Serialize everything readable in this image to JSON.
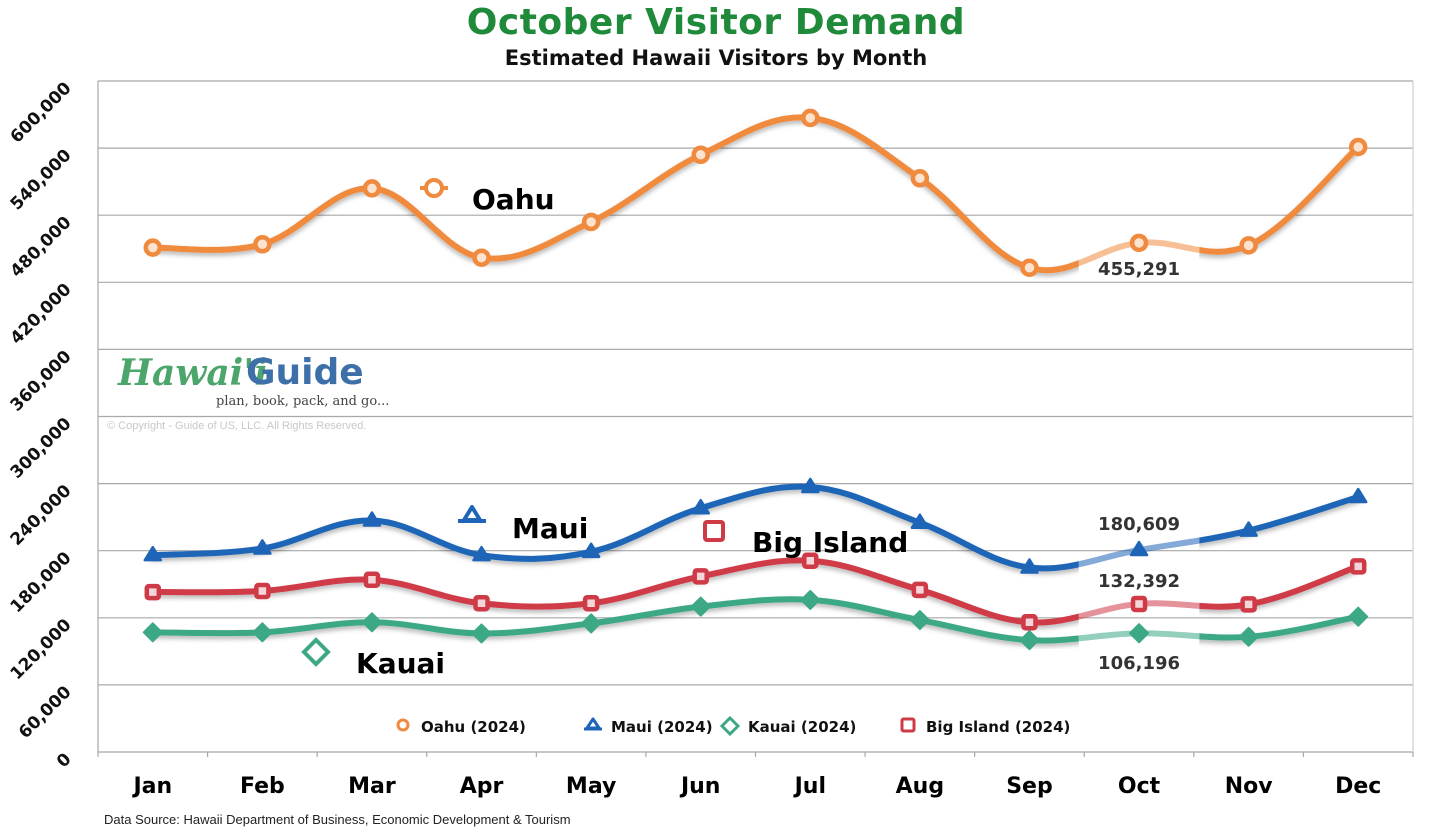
{
  "header": {
    "title": "October Visitor Demand",
    "subtitle": "Estimated Hawaii Visitors by Month"
  },
  "watermark": {
    "logo_part1": "Hawai'i",
    "logo_part2": "Guide",
    "tagline": "plan, book, pack, and go...",
    "copyright": "© Copyright - Guide of US, LLC. All Rights Reserved."
  },
  "footer": {
    "source": "Data Source: Hawaii Department of Business, Economic Development & Tourism"
  },
  "colors": {
    "title": "#1E8A3A",
    "oahu": "#F08A3E",
    "maui": "#1F65B7",
    "kauai": "#3DA886",
    "big_island": "#CF3A47",
    "grid": "#A8A8A8"
  },
  "chart_data": {
    "type": "line",
    "title": "October Visitor Demand",
    "subtitle": "Estimated Hawaii Visitors by Month",
    "xlabel": "",
    "ylabel": "",
    "ylim": [
      0,
      600000
    ],
    "yticks": [
      0,
      60000,
      120000,
      180000,
      240000,
      300000,
      360000,
      420000,
      480000,
      540000,
      600000
    ],
    "ytick_labels": [
      "0",
      "60,000",
      "120,000",
      "180,000",
      "240,000",
      "300,000",
      "360,000",
      "420,000",
      "480,000",
      "540,000",
      "600,000"
    ],
    "grid": true,
    "legend_position": "bottom-inside",
    "highlight_category": "Oct",
    "categories": [
      "Jan",
      "Feb",
      "Mar",
      "Apr",
      "May",
      "Jun",
      "Jul",
      "Aug",
      "Sep",
      "Oct",
      "Nov",
      "Dec"
    ],
    "series": [
      {
        "name": "Oahu (2024)",
        "short_name": "Oahu",
        "marker": "circle",
        "color": "#F08A3E",
        "values": [
          451000,
          454000,
          504000,
          442000,
          474000,
          534000,
          567000,
          513000,
          433000,
          455291,
          453000,
          541000
        ],
        "annotation": "455,291"
      },
      {
        "name": "Maui (2024)",
        "short_name": "Maui",
        "marker": "triangle",
        "color": "#1F65B7",
        "values": [
          176000,
          182000,
          207000,
          176000,
          179000,
          218000,
          237000,
          205000,
          165000,
          180609,
          198000,
          228000
        ],
        "annotation": "180,609"
      },
      {
        "name": "Kauai (2024)",
        "short_name": "Kauai",
        "marker": "diamond",
        "color": "#3DA886",
        "values": [
          107000,
          107000,
          116000,
          106000,
          115000,
          130000,
          136000,
          118000,
          100000,
          106196,
          103000,
          121000
        ],
        "annotation": "106,196"
      },
      {
        "name": "Big Island (2024)",
        "short_name": "Big Island",
        "marker": "square",
        "color": "#CF3A47",
        "values": [
          143000,
          144000,
          154000,
          133000,
          133000,
          157000,
          171000,
          145000,
          116000,
          132392,
          132000,
          166000
        ],
        "annotation": "132,392"
      }
    ]
  }
}
